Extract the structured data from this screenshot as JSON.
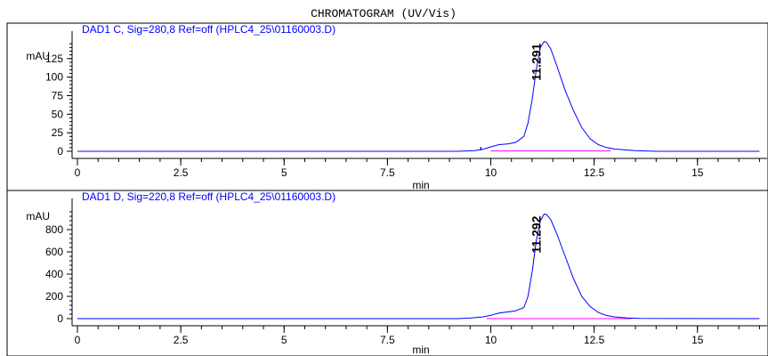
{
  "page_title": "CHROMATOGRAM (UV/Vis)",
  "chart_data": [
    {
      "type": "line",
      "title": "DAD1 C, Sig=280,8 Ref=off (HPLC4_25\\01160003.D)",
      "xlabel": "min",
      "ylabel": "mAU",
      "xlim": [
        0,
        16.5
      ],
      "ylim": [
        -6,
        150
      ],
      "x_ticks": [
        0,
        2.5,
        5,
        7.5,
        10,
        12.5,
        15
      ],
      "x_tick_labels": [
        "0",
        "2.5",
        "5",
        "7.5",
        "10",
        "12.5",
        "15"
      ],
      "y_ticks": [
        0,
        25,
        50,
        75,
        100,
        125
      ],
      "y_tick_labels": [
        "0",
        "25",
        "50",
        "75",
        "100",
        "125"
      ],
      "peak_label": "11.291",
      "peak_x": 11.291,
      "baseline_marker": {
        "x_start": 10.0,
        "x_end": 12.9,
        "y": 0.5
      },
      "series": [
        {
          "color": "#0000ff",
          "x": [
            0,
            9.2,
            9.6,
            9.75,
            9.76,
            9.77,
            10.0,
            10.2,
            10.4,
            10.6,
            10.8,
            10.9,
            11.0,
            11.1,
            11.2,
            11.291,
            11.35,
            11.45,
            11.6,
            11.8,
            12.0,
            12.2,
            12.4,
            12.6,
            12.8,
            13.0,
            13.5,
            14.0,
            16.5
          ],
          "values": [
            0,
            0,
            1,
            2,
            6,
            2,
            6,
            9,
            10,
            12,
            20,
            38,
            70,
            110,
            140,
            148,
            147,
            138,
            115,
            82,
            55,
            32,
            17,
            9,
            5,
            3,
            1,
            0,
            0
          ]
        }
      ]
    },
    {
      "type": "line",
      "title": "DAD1 D, Sig=220,8 Ref=off (HPLC4_25\\01160003.D)",
      "xlabel": "min",
      "ylabel": "mAU",
      "xlim": [
        0,
        16.5
      ],
      "ylim": [
        -40,
        1000
      ],
      "x_ticks": [
        0,
        2.5,
        5,
        7.5,
        10,
        12.5,
        15
      ],
      "x_tick_labels": [
        "0",
        "2.5",
        "5",
        "7.5",
        "10",
        "12.5",
        "15"
      ],
      "y_ticks": [
        0,
        200,
        400,
        600,
        800
      ],
      "y_tick_labels": [
        "0",
        "200",
        "400",
        "600",
        "800"
      ],
      "peak_label": "11.292",
      "peak_x": 11.292,
      "baseline_marker": {
        "x_start": 9.9,
        "x_end": 13.4,
        "y": 0
      },
      "series": [
        {
          "color": "#0000ff",
          "x": [
            0,
            9.2,
            9.3,
            9.5,
            9.8,
            10.0,
            10.2,
            10.4,
            10.6,
            10.8,
            10.9,
            11.0,
            11.1,
            11.2,
            11.292,
            11.35,
            11.45,
            11.6,
            11.8,
            12.0,
            12.2,
            12.4,
            12.6,
            12.8,
            13.0,
            13.3,
            13.6,
            16.5
          ],
          "values": [
            0,
            0,
            2,
            5,
            15,
            30,
            50,
            60,
            70,
            100,
            200,
            420,
            700,
            880,
            940,
            935,
            890,
            760,
            560,
            360,
            200,
            110,
            55,
            28,
            15,
            6,
            2,
            0
          ]
        }
      ]
    }
  ]
}
